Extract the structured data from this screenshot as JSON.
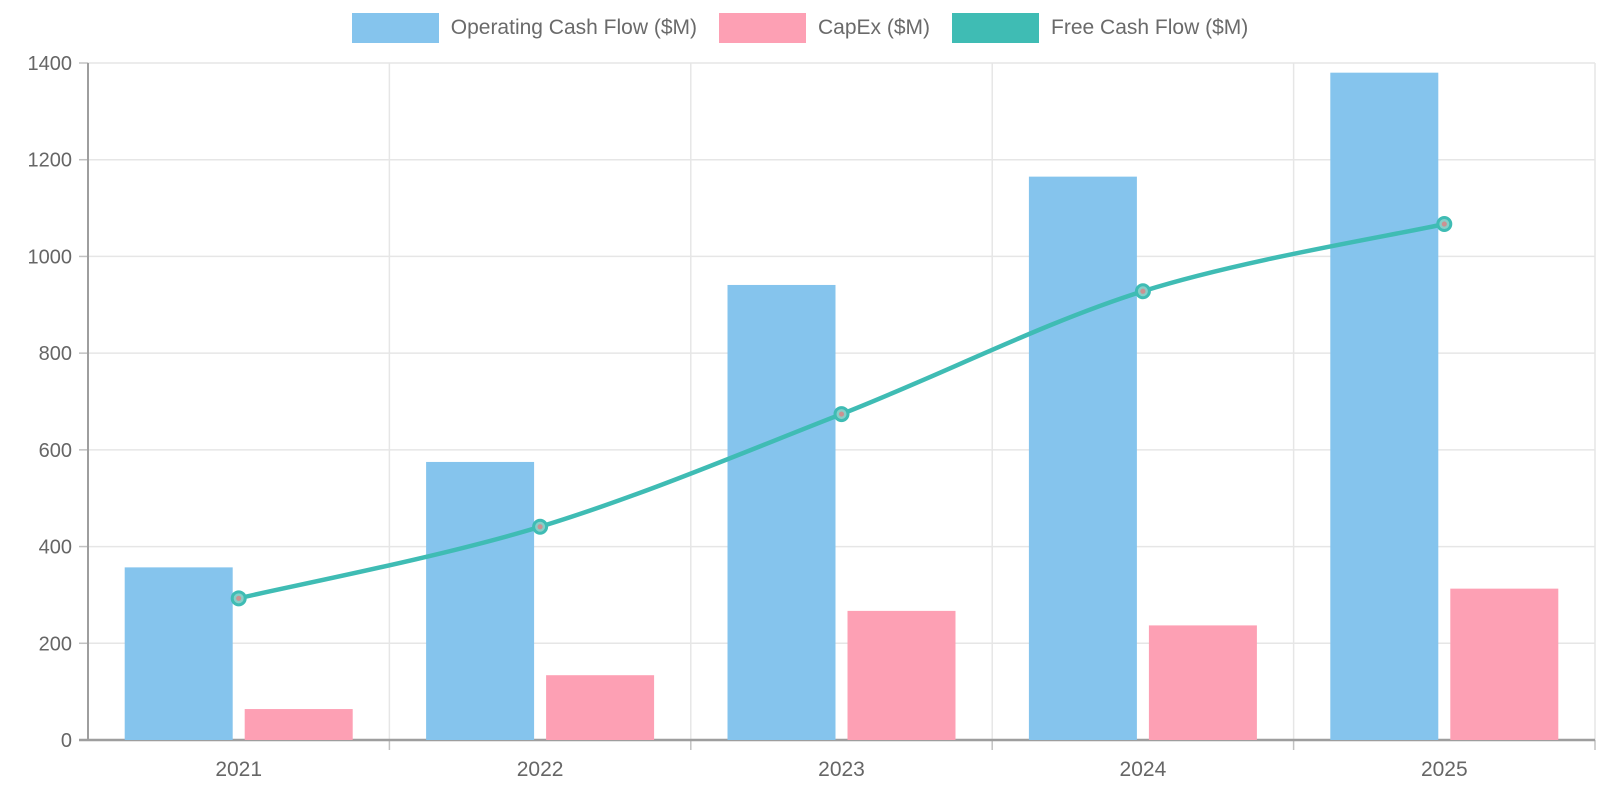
{
  "legend": {
    "position": "top",
    "items": [
      {
        "label": "Operating Cash Flow ($M)",
        "swatch_color": "#85c4ed"
      },
      {
        "label": "CapEx ($M)",
        "swatch_color": "#fda0b4"
      },
      {
        "label": "Free Cash Flow ($M)",
        "swatch_color": "#3fbcb4"
      }
    ]
  },
  "colors": {
    "operating_bar": "#85c4ed",
    "capex_bar": "#fda0b4",
    "fcf_line": "#3fbcb4",
    "fcf_marker_fill": "#85cfc8",
    "fcf_marker_center": "#cb9292",
    "gridline": "#e6e6e6",
    "axis_line": "#9e9e9e",
    "tick_mark": "#c2c2c2",
    "tick_label": "#666666",
    "legend_text": "#6a6a6a",
    "background": "#ffffff"
  },
  "chart_data": {
    "type": "bar",
    "subtype": "grouped-bars-with-line-overlay",
    "categories": [
      "2021",
      "2022",
      "2023",
      "2024",
      "2025"
    ],
    "series": [
      {
        "name": "Operating Cash Flow ($M)",
        "type": "bar",
        "color": "#85c4ed",
        "values": [
          357,
          575,
          941,
          1165,
          1380
        ]
      },
      {
        "name": "CapEx ($M)",
        "type": "bar",
        "color": "#fda0b4",
        "values": [
          64,
          134,
          267,
          237,
          313
        ]
      },
      {
        "name": "Free Cash Flow ($M)",
        "type": "line",
        "color": "#3fbcb4",
        "values": [
          293,
          441,
          674,
          928,
          1067
        ]
      }
    ],
    "title": "",
    "xlabel": "",
    "ylabel": "",
    "ylim": [
      0,
      1400
    ],
    "yticks": [
      0,
      200,
      400,
      600,
      800,
      1000,
      1200,
      1400
    ],
    "grid": true,
    "legend_position": "top",
    "line_is_smooth": true
  }
}
